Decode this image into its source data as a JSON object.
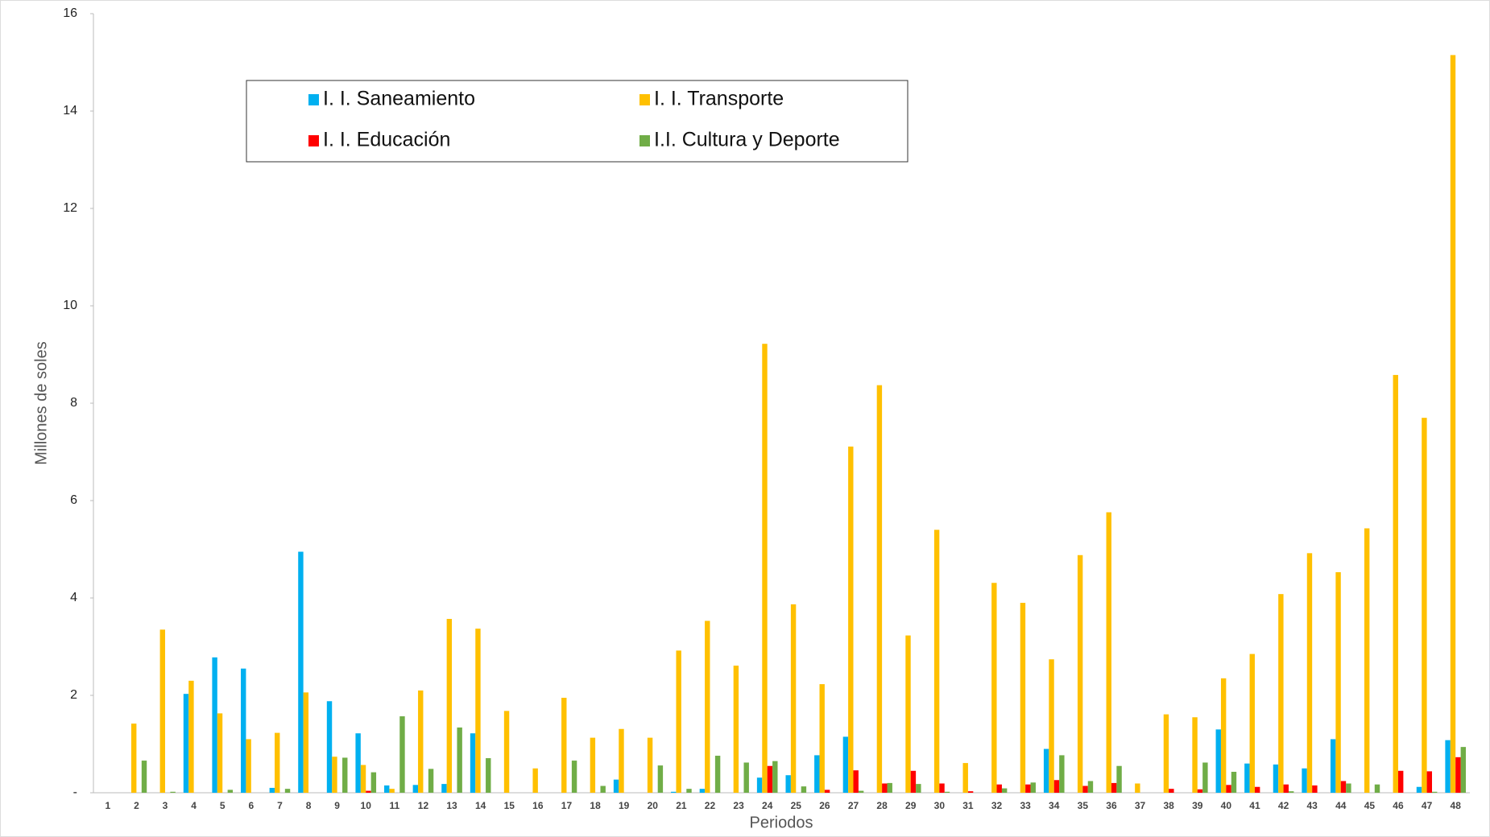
{
  "chart_data": {
    "type": "bar",
    "y_label": "Millones de soles",
    "x_label": "Periodos",
    "categories": [
      "1",
      "2",
      "3",
      "4",
      "5",
      "6",
      "7",
      "8",
      "9",
      "10",
      "11",
      "12",
      "13",
      "14",
      "15",
      "16",
      "17",
      "18",
      "19",
      "20",
      "21",
      "22",
      "23",
      "24",
      "25",
      "26",
      "27",
      "28",
      "29",
      "30",
      "31",
      "32",
      "33",
      "34",
      "35",
      "36",
      "37",
      "38",
      "39",
      "40",
      "41",
      "42",
      "43",
      "44",
      "45",
      "46",
      "47",
      "48"
    ],
    "ylim": [
      0,
      16
    ],
    "yticks": [
      {
        "value": 0,
        "label": "-"
      },
      2,
      4,
      6,
      8,
      10,
      12,
      14,
      16
    ],
    "grid": false,
    "series": [
      {
        "name": "I. I. Saneamiento",
        "color": "#00b0f0",
        "values": [
          0,
          0,
          0,
          2.03,
          2.78,
          2.55,
          0.1,
          4.95,
          1.88,
          1.22,
          0.15,
          0.16,
          0.18,
          1.22,
          0,
          0,
          0,
          0,
          0.27,
          0,
          0.02,
          0.08,
          0,
          0.31,
          0.36,
          0.77,
          1.15,
          0,
          0,
          0,
          0,
          0,
          0,
          0.9,
          0,
          0,
          0,
          0,
          0,
          1.3,
          0.6,
          0.58,
          0.5,
          1.1,
          0,
          0,
          0.12,
          1.08
        ]
      },
      {
        "name": "I. I. Transporte",
        "color": "#ffc000",
        "values": [
          0,
          1.42,
          3.35,
          2.3,
          1.63,
          1.1,
          1.23,
          2.06,
          0.74,
          0.57,
          0.08,
          2.1,
          3.57,
          3.37,
          1.68,
          0.5,
          1.95,
          1.13,
          1.31,
          1.13,
          2.92,
          3.53,
          2.61,
          9.22,
          3.87,
          2.23,
          7.11,
          8.37,
          3.23,
          5.4,
          0.61,
          4.31,
          3.9,
          2.74,
          4.88,
          5.76,
          0.19,
          1.61,
          1.55,
          2.35,
          2.85,
          4.08,
          4.92,
          4.53,
          5.43,
          8.58,
          7.7,
          15.15
        ]
      },
      {
        "name": "I. I. Educación",
        "color": "#ff0000",
        "values": [
          0,
          0,
          0,
          0,
          0,
          0,
          0,
          0,
          0,
          0.04,
          0,
          0,
          0,
          0,
          0,
          0,
          0,
          0,
          0,
          0,
          0,
          0,
          0,
          0.55,
          0,
          0.06,
          0.46,
          0.19,
          0.45,
          0.19,
          0.03,
          0.17,
          0.17,
          0.26,
          0.14,
          0.2,
          0,
          0.08,
          0.07,
          0.16,
          0.12,
          0.17,
          0.15,
          0.24,
          0,
          0.45,
          0.44,
          0.73
        ]
      },
      {
        "name": "I.I. Cultura y Deporte",
        "color": "#70ad47",
        "values": [
          0,
          0.66,
          0.02,
          0,
          0.06,
          0,
          0.08,
          0,
          0.72,
          0.42,
          1.57,
          0.49,
          1.34,
          0.71,
          0,
          0,
          0.66,
          0.14,
          0,
          0.56,
          0.08,
          0.76,
          0.62,
          0.65,
          0.13,
          0,
          0.04,
          0.2,
          0.18,
          0.02,
          0,
          0.09,
          0.21,
          0.77,
          0.24,
          0.55,
          0,
          0,
          0.62,
          0.43,
          0,
          0.03,
          0,
          0.19,
          0.17,
          0,
          0.02,
          0.94
        ]
      }
    ]
  }
}
